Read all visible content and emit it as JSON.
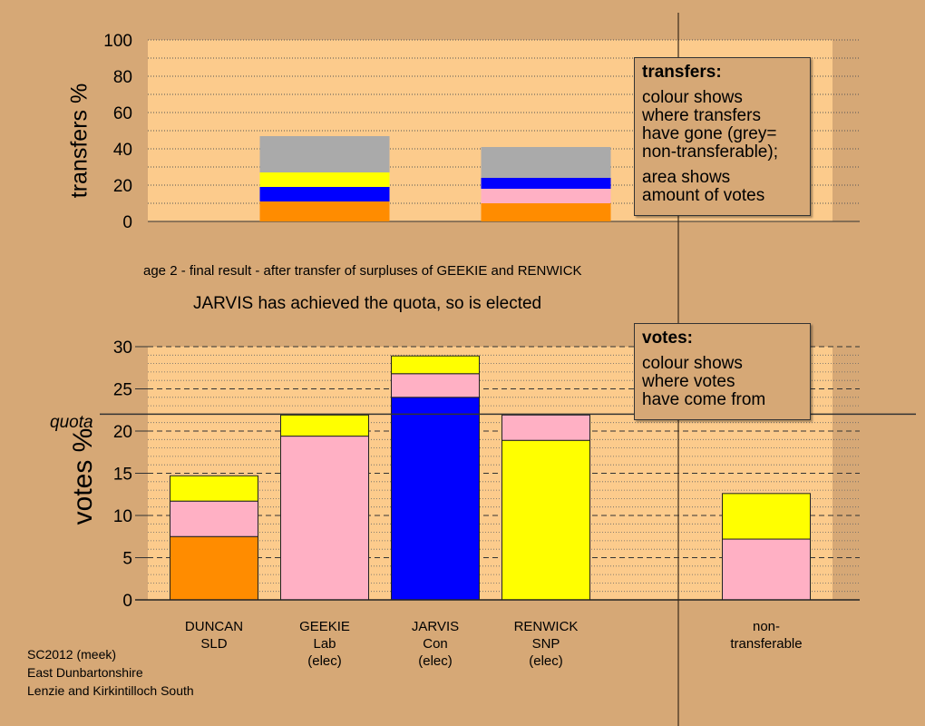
{
  "transfers_legend": {
    "title": "transfers:",
    "lines": [
      "colour shows",
      "where transfers",
      "have gone (grey=",
      "non-transferable);"
    ],
    "lines2": [
      "area shows",
      "amount of votes"
    ]
  },
  "votes_legend": {
    "title": "votes:",
    "lines": [
      "colour shows",
      "where votes",
      "have come from"
    ]
  },
  "stage_caption": "age 2 - final result - after transfer of surpluses of GEEKIE and RENWICK",
  "elected_caption": "JARVIS has achieved the quota, so is elected",
  "quota_label": "quota",
  "candidates": [
    {
      "name": "DUNCAN",
      "party": "SLD",
      "status": ""
    },
    {
      "name": "GEEKIE",
      "party": "Lab",
      "status": "(elec)"
    },
    {
      "name": "JARVIS",
      "party": "Con",
      "status": "(elec)"
    },
    {
      "name": "RENWICK",
      "party": "SNP",
      "status": "(elec)"
    },
    {
      "name": "non-",
      "party": "transferable",
      "status": ""
    }
  ],
  "footer": {
    "line1": "SC2012 (meek)",
    "line2": "East Dunbartonshire",
    "line3": "Lenzie and Kirkintilloch South"
  },
  "colors": {
    "background": "#d6a876",
    "plot_area": "#fccb8c",
    "orange": "#ff8c00",
    "pink": "#ffb0c4",
    "blue": "#0000ff",
    "yellow": "#ffff00",
    "grey": "#aaaaaa"
  },
  "chart_data": [
    {
      "type": "bar",
      "stacked": true,
      "ylabel": "transfers %",
      "ylim": [
        0,
        100
      ],
      "yticks": [
        0,
        20,
        40,
        60,
        80,
        100
      ],
      "grid": true,
      "legend_placement": "top-right",
      "categories": [
        "DUNCAN",
        "GEEKIE",
        "JARVIS",
        "RENWICK",
        "non-transferable"
      ],
      "bars": [
        {
          "category": "GEEKIE",
          "segments": [
            {
              "color": "orange",
              "value": 11
            },
            {
              "color": "blue",
              "value": 8
            },
            {
              "color": "yellow",
              "value": 8
            },
            {
              "color": "grey",
              "value": 20
            }
          ]
        },
        {
          "category": "RENWICK",
          "segments": [
            {
              "color": "orange",
              "value": 10
            },
            {
              "color": "pink",
              "value": 8
            },
            {
              "color": "blue",
              "value": 6
            },
            {
              "color": "grey",
              "value": 17
            }
          ]
        }
      ]
    },
    {
      "type": "bar",
      "stacked": true,
      "ylabel": "votes %",
      "ylim": [
        0,
        30
      ],
      "yticks": [
        0,
        5,
        10,
        15,
        20,
        25,
        30
      ],
      "quota": 22,
      "grid": true,
      "legend_placement": "top-right",
      "categories": [
        "DUNCAN",
        "GEEKIE",
        "JARVIS",
        "RENWICK",
        "non-transferable"
      ],
      "bars": [
        {
          "category": "DUNCAN",
          "segments": [
            {
              "color": "orange",
              "value": 7.5
            },
            {
              "color": "pink",
              "value": 4.2
            },
            {
              "color": "yellow",
              "value": 3.0
            }
          ]
        },
        {
          "category": "GEEKIE",
          "segments": [
            {
              "color": "pink",
              "value": 19.4
            },
            {
              "color": "yellow",
              "value": 2.5
            }
          ]
        },
        {
          "category": "JARVIS",
          "segments": [
            {
              "color": "blue",
              "value": 24.0
            },
            {
              "color": "pink",
              "value": 2.8
            },
            {
              "color": "yellow",
              "value": 2.1
            }
          ]
        },
        {
          "category": "RENWICK",
          "segments": [
            {
              "color": "yellow",
              "value": 18.9
            },
            {
              "color": "pink",
              "value": 3.0
            }
          ]
        },
        {
          "category": "non-transferable",
          "segments": [
            {
              "color": "pink",
              "value": 7.2
            },
            {
              "color": "yellow",
              "value": 5.4
            }
          ]
        }
      ]
    }
  ]
}
